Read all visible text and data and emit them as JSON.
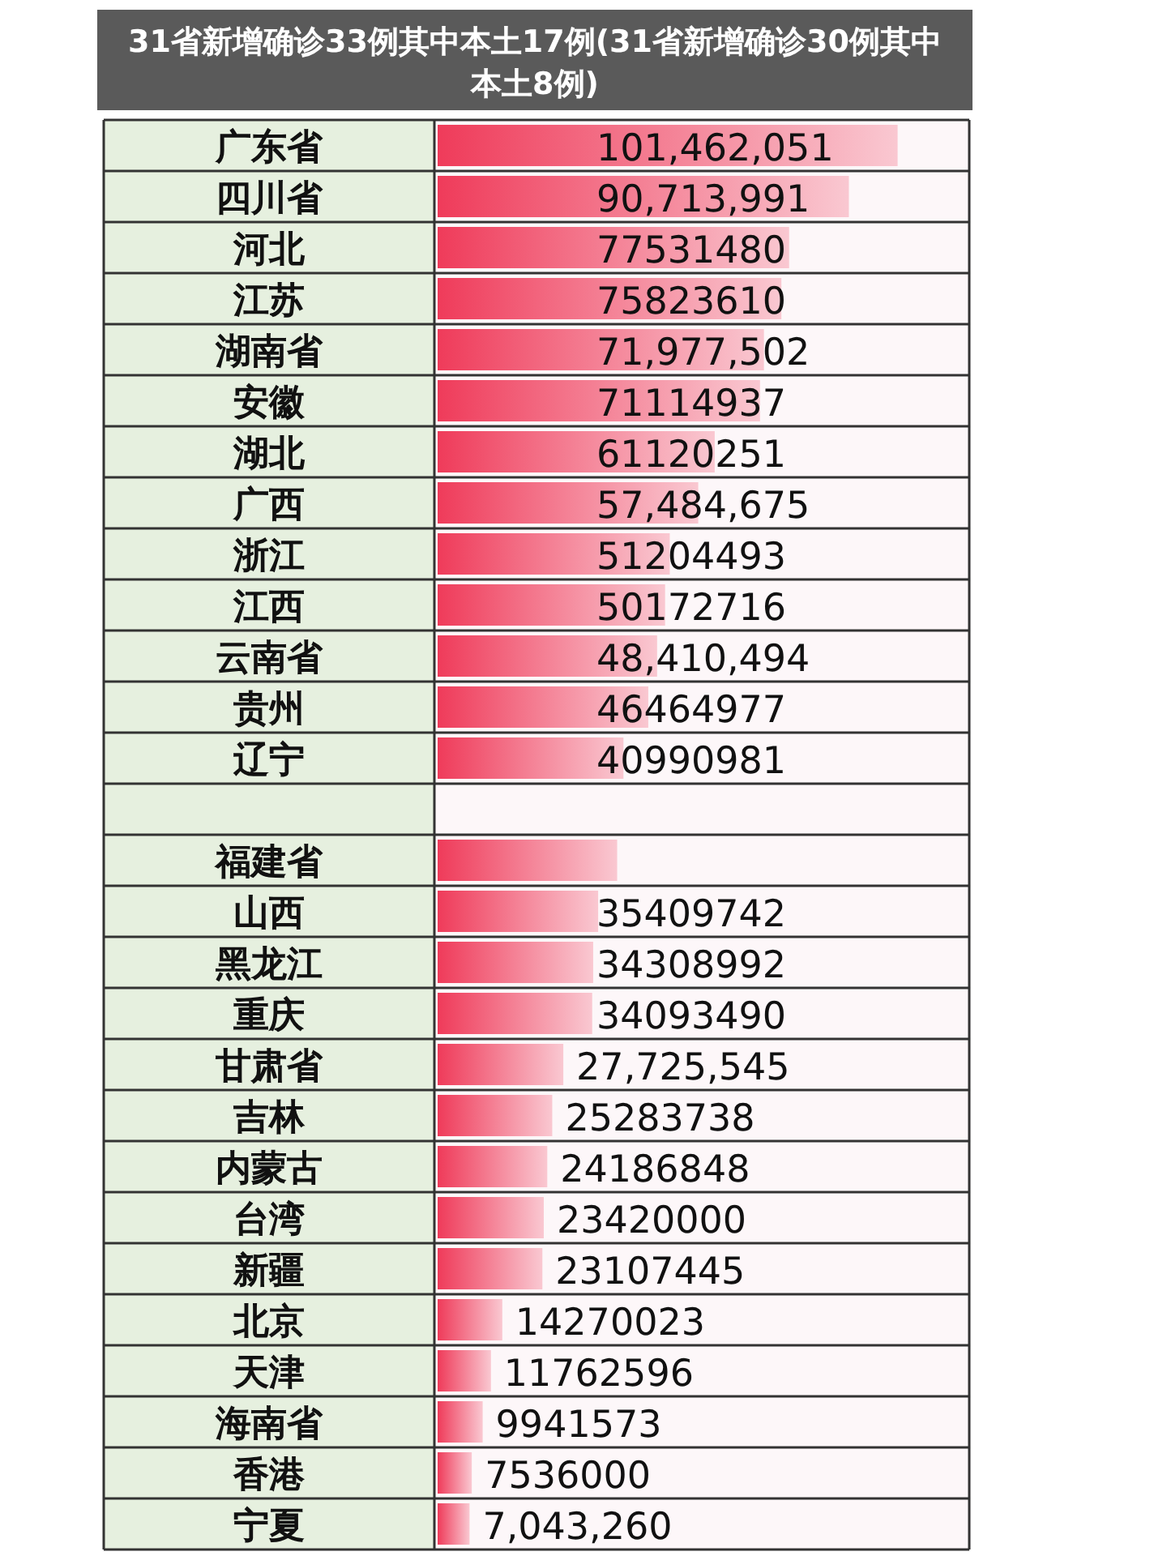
{
  "chart_data": {
    "type": "bar",
    "orientation": "horizontal",
    "title": "31省新增确诊33例其中本土17例(31省新增确诊30例其中本土8例)",
    "categories": [
      "广东省",
      "四川省",
      "河北",
      "江苏",
      "湖南省",
      "安徽",
      "湖北",
      "广西",
      "浙江",
      "江西",
      "云南省",
      "贵州",
      "辽宁",
      null,
      "福建省",
      "山西",
      "黑龙江",
      "重庆",
      "甘肃省",
      "吉林",
      "内蒙古",
      "台湾",
      "新疆",
      "北京",
      "天津",
      "海南省",
      "香港",
      "宁夏"
    ],
    "values": [
      101462051,
      90713991,
      77531480,
      75823610,
      71977502,
      71114937,
      61120251,
      57484675,
      51204493,
      50172716,
      48410494,
      46464977,
      40990981,
      null,
      39600000,
      35409742,
      34308992,
      34093490,
      27725545,
      25283738,
      24186848,
      23420000,
      23107445,
      14270023,
      11762596,
      9941573,
      7536000,
      7043260
    ],
    "value_labels": [
      "101,462,051",
      "90,713,991",
      "77531480",
      "75823610",
      "71,977,502",
      "71114937",
      "61120251",
      "57,484,675",
      "51204493",
      "50172716",
      "48,410,494",
      "46464977",
      "40990981",
      null,
      null,
      "35409742",
      "34308992",
      "34093490",
      "27,725,545",
      "25283738",
      "24186848",
      "23420000",
      "23107445",
      "14270023",
      "11762596",
      "9941573",
      "7536000",
      "7,043,260"
    ],
    "color": "#ef3b5a"
  }
}
